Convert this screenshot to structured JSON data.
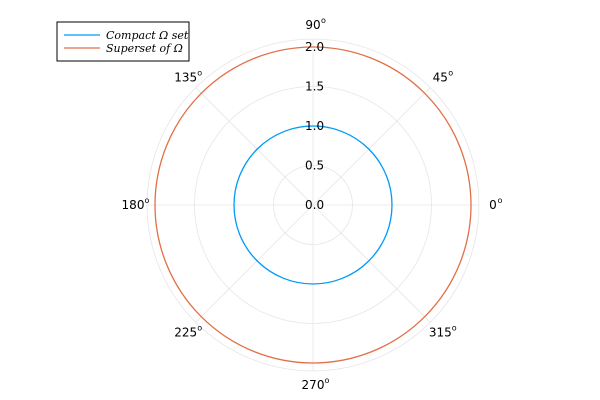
{
  "chart_data": {
    "type": "line",
    "coordinate_system": "polar",
    "grid": true,
    "legend_position": "top-left",
    "radial_ticks": [
      "0.0",
      "0.5",
      "1.0",
      "1.5",
      "2.0"
    ],
    "radial_range": [
      0,
      2.1
    ],
    "angular_ticks": [
      {
        "deg": 0,
        "label": "0",
        "sup": "o"
      },
      {
        "deg": 45,
        "label": "45",
        "sup": "o"
      },
      {
        "deg": 90,
        "label": "90",
        "sup": "o"
      },
      {
        "deg": 135,
        "label": "135",
        "sup": "o"
      },
      {
        "deg": 180,
        "label": "180",
        "sup": "o"
      },
      {
        "deg": 225,
        "label": "225",
        "sup": "o"
      },
      {
        "deg": 270,
        "label": "270",
        "sup": "o"
      },
      {
        "deg": 315,
        "label": "315",
        "sup": "o"
      }
    ],
    "series": [
      {
        "name": "Compact Ω set",
        "r": 1.0,
        "theta_range": [
          0,
          360
        ],
        "color": "#009af9"
      },
      {
        "name": "Superset of Ω",
        "r": 2.0,
        "theta_range": [
          0,
          360
        ],
        "color": "#e26f46"
      }
    ]
  }
}
